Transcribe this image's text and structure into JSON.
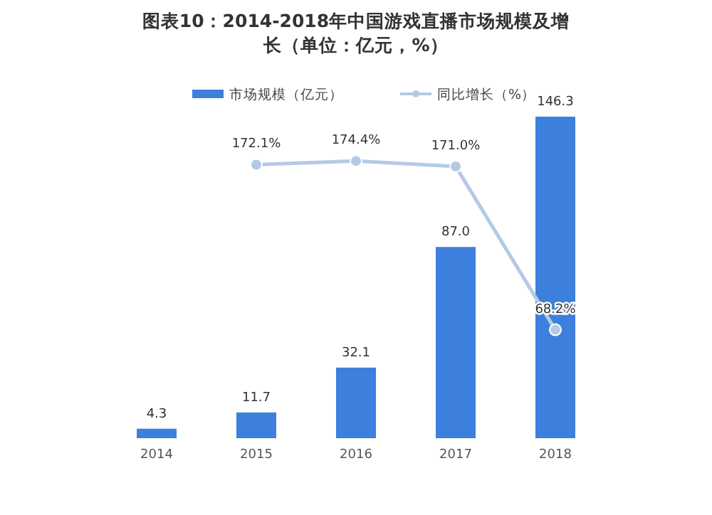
{
  "chart_data": {
    "type": "bar",
    "title": "图表10：2014-2018年中国游戏直播市场规模及增长（单位：亿元，%）",
    "categories": [
      "2014",
      "2015",
      "2016",
      "2017",
      "2018"
    ],
    "legend": "top",
    "series": [
      {
        "name": "市场规模（亿元）",
        "color": "#3d7fdc",
        "values": [
          4.3,
          11.7,
          32.1,
          87.0,
          146.3
        ],
        "value_labels": [
          "4.3",
          "11.7",
          "32.1",
          "87.0",
          "146.3"
        ]
      },
      {
        "name": "同比增长（%）",
        "type": "line",
        "axis": "y2",
        "marker": "circle",
        "line_style": "solid",
        "color": "#b3c9e6",
        "values": [
          null,
          172.1,
          174.4,
          171.0,
          68.2
        ],
        "value_labels": [
          null,
          "172.1%",
          "174.4%",
          "171.0%",
          "68.2%"
        ]
      }
    ]
  }
}
